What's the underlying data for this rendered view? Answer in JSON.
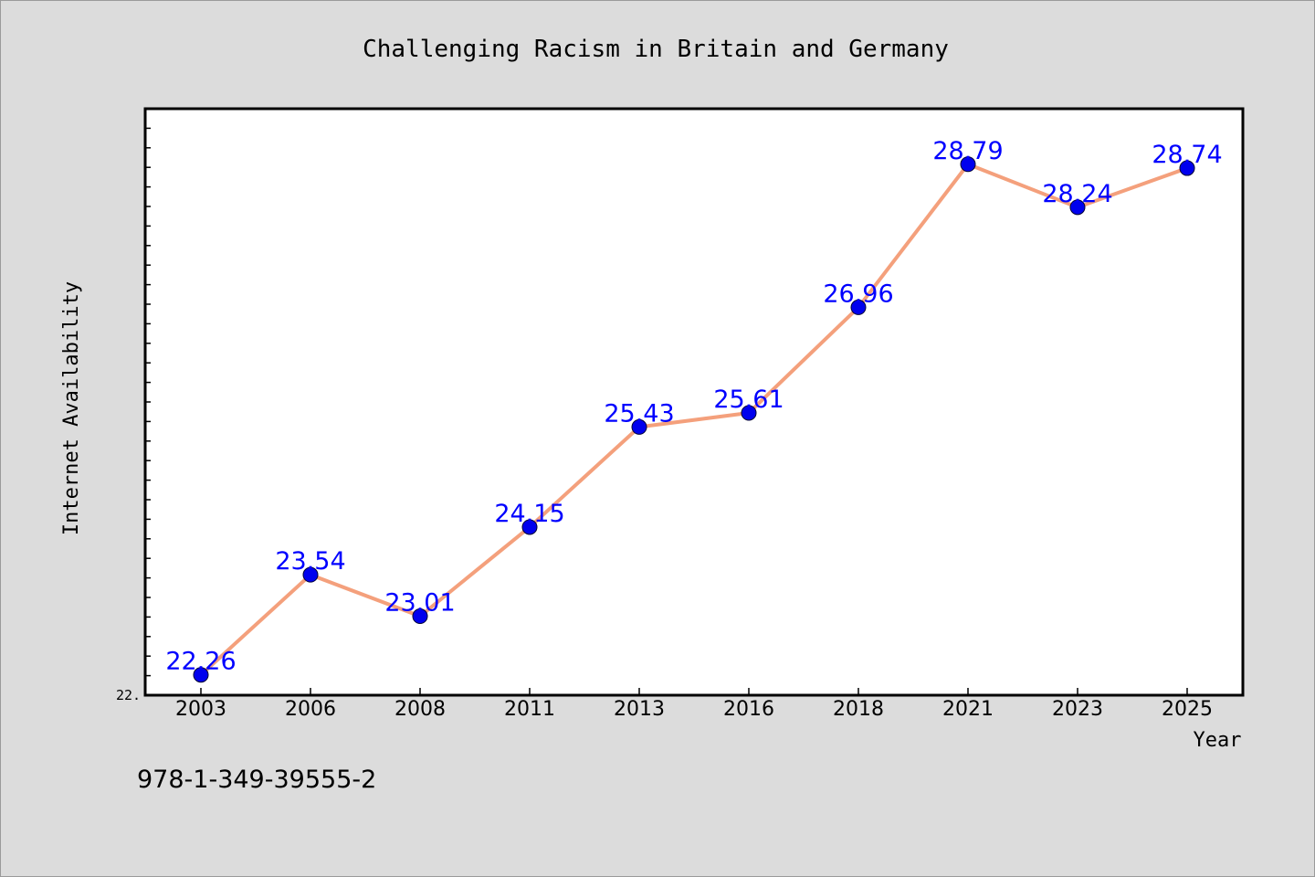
{
  "chart_data": {
    "type": "line",
    "title": "Challenging Racism in Britain and Germany",
    "xlabel": "Year",
    "ylabel": "Internet Availability",
    "categories": [
      "2003",
      "2006",
      "2008",
      "2011",
      "2013",
      "2016",
      "2018",
      "2021",
      "2023",
      "2025"
    ],
    "series": [
      {
        "values": [
          22.26,
          23.54,
          23.01,
          24.15,
          25.43,
          25.61,
          26.96,
          28.79,
          28.24,
          28.74
        ],
        "labels": [
          "22.26",
          "23.54",
          "23.01",
          "24.15",
          "25.43",
          "25.61",
          "26.96",
          "28.79",
          "28.24",
          "28.74"
        ]
      }
    ],
    "ylim": [
      22.0,
      29.5
    ],
    "y_tick_label": "22.",
    "grid": false,
    "line_color": "#f4a07c",
    "marker_color": "#0000ee",
    "label_color": "#0000ff",
    "plot_background": "#ffffff",
    "figure_background": "#dcdcdc"
  },
  "annotation": "978-1-349-39555-2"
}
